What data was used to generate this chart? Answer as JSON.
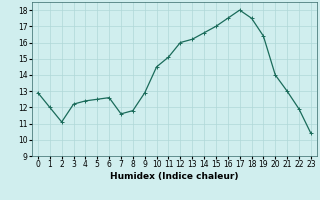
{
  "x": [
    0,
    1,
    2,
    3,
    4,
    5,
    6,
    7,
    8,
    9,
    10,
    11,
    12,
    13,
    14,
    15,
    16,
    17,
    18,
    19,
    20,
    21,
    22,
    23
  ],
  "y": [
    12.9,
    12.0,
    11.1,
    12.2,
    12.4,
    12.5,
    12.6,
    11.6,
    11.8,
    12.9,
    14.5,
    15.1,
    16.0,
    16.2,
    16.6,
    17.0,
    17.5,
    18.0,
    17.5,
    16.4,
    14.0,
    13.0,
    11.9,
    10.4
  ],
  "xlabel": "Humidex (Indice chaleur)",
  "ylabel": "",
  "xlim": [
    -0.5,
    23.5
  ],
  "ylim": [
    9,
    18.5
  ],
  "yticks": [
    9,
    10,
    11,
    12,
    13,
    14,
    15,
    16,
    17,
    18
  ],
  "xticks": [
    0,
    1,
    2,
    3,
    4,
    5,
    6,
    7,
    8,
    9,
    10,
    11,
    12,
    13,
    14,
    15,
    16,
    17,
    18,
    19,
    20,
    21,
    22,
    23
  ],
  "line_color": "#1a6b5a",
  "marker": "+",
  "bg_color": "#d0eeee",
  "grid_color": "#b0d8d8",
  "label_fontsize": 6.5,
  "tick_fontsize": 5.5
}
